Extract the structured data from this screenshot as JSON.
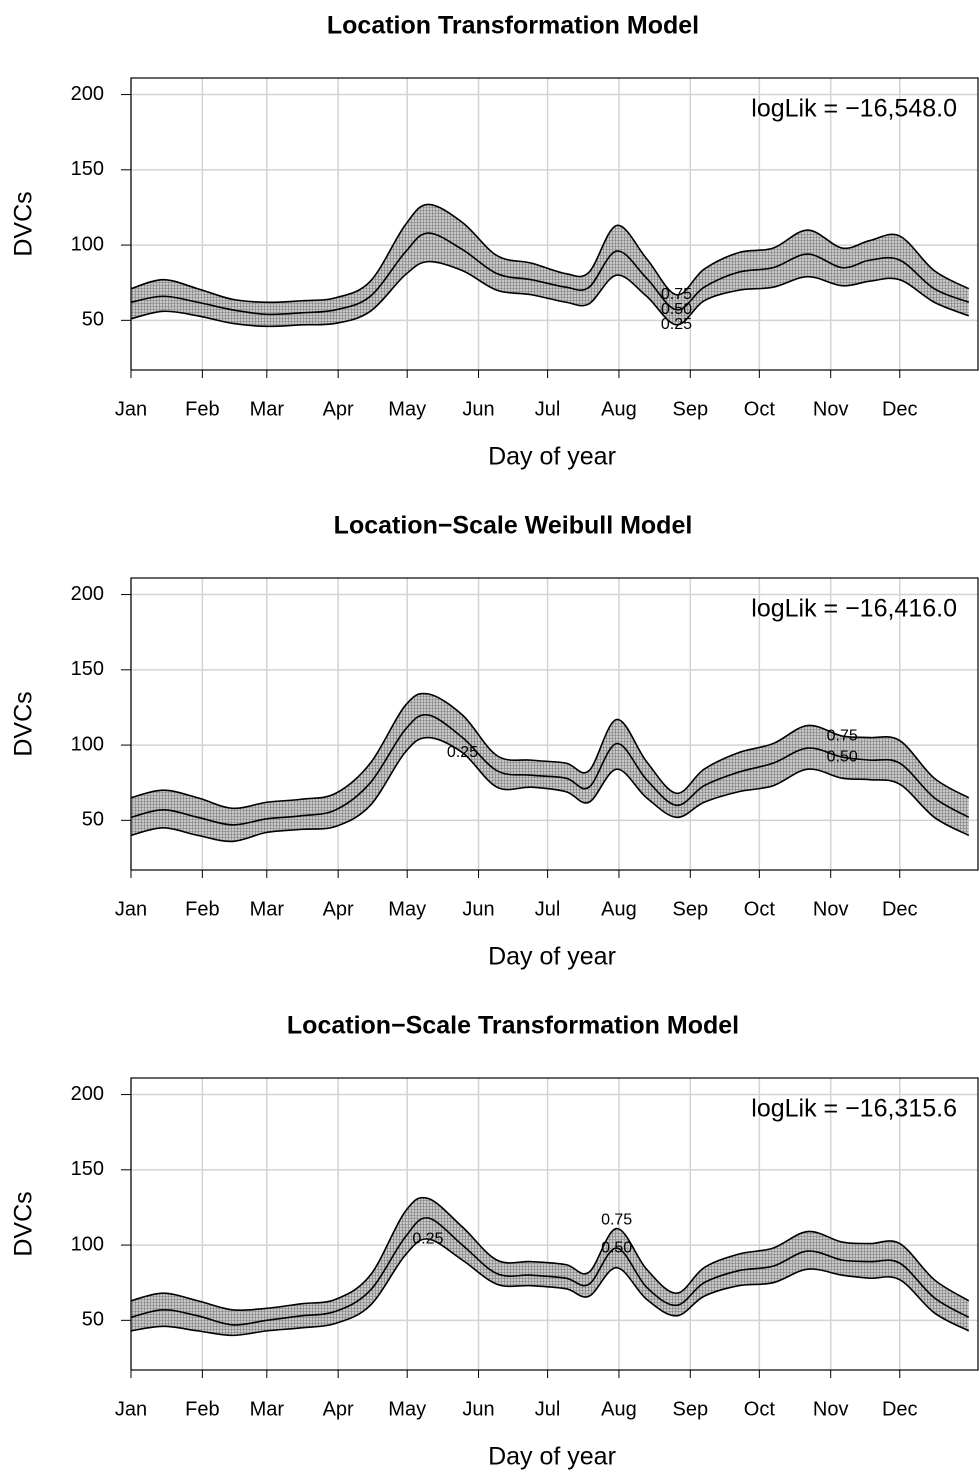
{
  "chart_data": [
    {
      "type": "line",
      "title": "Location Transformation Model",
      "x_label": "Day of year",
      "y_label": "DVCs",
      "annotation": "logLik =  −16,548.0",
      "x": [
        1,
        15,
        30,
        45,
        60,
        75,
        90,
        105,
        120,
        130,
        145,
        160,
        175,
        190,
        200,
        212,
        225,
        238,
        250,
        265,
        280,
        295,
        310,
        322,
        335,
        350,
        365
      ],
      "xlim": [
        1,
        369
      ],
      "ylim": [
        17,
        211
      ],
      "yticks": [
        50,
        100,
        150,
        200
      ],
      "xticks": [
        {
          "value": 1,
          "label": "Jan"
        },
        {
          "value": 32,
          "label": "Feb"
        },
        {
          "value": 60,
          "label": "Mar"
        },
        {
          "value": 91,
          "label": "Apr"
        },
        {
          "value": 121,
          "label": "May"
        },
        {
          "value": 152,
          "label": "Jun"
        },
        {
          "value": 182,
          "label": "Jul"
        },
        {
          "value": 213,
          "label": "Aug"
        },
        {
          "value": 244,
          "label": "Sep"
        },
        {
          "value": 274,
          "label": "Oct"
        },
        {
          "value": 305,
          "label": "Nov"
        },
        {
          "value": 335,
          "label": "Dec"
        }
      ],
      "grid": true,
      "series": [
        {
          "name": "0.25",
          "color": "#000000",
          "values": [
            51,
            56,
            53,
            48,
            46,
            47,
            48,
            56,
            80,
            89,
            83,
            70,
            67,
            62,
            61,
            80,
            66,
            47,
            63,
            70,
            72,
            79,
            73,
            76,
            77,
            62,
            53
          ]
        },
        {
          "name": "0.50",
          "color": "#000000",
          "values": [
            62,
            66,
            62,
            57,
            54,
            55,
            57,
            66,
            95,
            108,
            97,
            81,
            77,
            72,
            72,
            96,
            78,
            57,
            72,
            82,
            85,
            94,
            85,
            90,
            90,
            71,
            62
          ]
        },
        {
          "name": "0.75",
          "color": "#000000",
          "values": [
            71,
            77,
            71,
            64,
            62,
            63,
            65,
            76,
            113,
            127,
            115,
            93,
            88,
            81,
            82,
            113,
            91,
            67,
            84,
            95,
            98,
            110,
            98,
            103,
            106,
            83,
            71
          ]
        }
      ]
    },
    {
      "type": "line",
      "title": "Location−Scale Weibull Model",
      "x_label": "Day of year",
      "y_label": "DVCs",
      "annotation": "logLik =  −16,416.0",
      "x": [
        1,
        15,
        30,
        45,
        60,
        75,
        90,
        105,
        120,
        130,
        145,
        160,
        175,
        190,
        200,
        212,
        225,
        238,
        250,
        265,
        280,
        295,
        310,
        322,
        335,
        350,
        365
      ],
      "xlim": [
        1,
        369
      ],
      "ylim": [
        17,
        211
      ],
      "yticks": [
        50,
        100,
        150,
        200
      ],
      "xticks": [
        {
          "value": 1,
          "label": "Jan"
        },
        {
          "value": 32,
          "label": "Feb"
        },
        {
          "value": 60,
          "label": "Mar"
        },
        {
          "value": 91,
          "label": "Apr"
        },
        {
          "value": 121,
          "label": "May"
        },
        {
          "value": 152,
          "label": "Jun"
        },
        {
          "value": 182,
          "label": "Jul"
        },
        {
          "value": 213,
          "label": "Aug"
        },
        {
          "value": 244,
          "label": "Sep"
        },
        {
          "value": 274,
          "label": "Oct"
        },
        {
          "value": 305,
          "label": "Nov"
        },
        {
          "value": 335,
          "label": "Dec"
        }
      ],
      "grid": true,
      "series": [
        {
          "name": "0.25",
          "color": "#000000",
          "values": [
            40,
            45,
            40,
            36,
            42,
            44,
            46,
            60,
            95,
            105,
            95,
            72,
            72,
            69,
            62,
            84,
            65,
            52,
            62,
            69,
            73,
            84,
            78,
            77,
            74,
            52,
            40
          ]
        },
        {
          "name": "0.50",
          "color": "#000000",
          "values": [
            52,
            57,
            52,
            47,
            51,
            53,
            57,
            75,
            110,
            120,
            105,
            83,
            80,
            78,
            72,
            101,
            77,
            60,
            73,
            82,
            88,
            98,
            92,
            90,
            88,
            65,
            52
          ]
        },
        {
          "name": "0.75",
          "color": "#000000",
          "values": [
            65,
            70,
            65,
            58,
            62,
            64,
            68,
            88,
            126,
            134,
            120,
            93,
            90,
            88,
            83,
            117,
            89,
            68,
            84,
            95,
            101,
            113,
            106,
            105,
            103,
            78,
            65
          ]
        }
      ]
    },
    {
      "type": "line",
      "title": "Location−Scale Transformation Model",
      "x_label": "Day of year",
      "y_label": "DVCs",
      "annotation": "logLik =  −16,315.6",
      "x": [
        1,
        15,
        30,
        45,
        60,
        75,
        90,
        105,
        120,
        130,
        145,
        160,
        175,
        190,
        200,
        212,
        225,
        238,
        250,
        265,
        280,
        295,
        310,
        322,
        335,
        350,
        365
      ],
      "xlim": [
        1,
        369
      ],
      "ylim": [
        17,
        211
      ],
      "yticks": [
        50,
        100,
        150,
        200
      ],
      "xticks": [
        {
          "value": 1,
          "label": "Jan"
        },
        {
          "value": 32,
          "label": "Feb"
        },
        {
          "value": 60,
          "label": "Mar"
        },
        {
          "value": 91,
          "label": "Apr"
        },
        {
          "value": 121,
          "label": "May"
        },
        {
          "value": 152,
          "label": "Jun"
        },
        {
          "value": 182,
          "label": "Jul"
        },
        {
          "value": 213,
          "label": "Aug"
        },
        {
          "value": 244,
          "label": "Sep"
        },
        {
          "value": 274,
          "label": "Oct"
        },
        {
          "value": 305,
          "label": "Nov"
        },
        {
          "value": 335,
          "label": "Dec"
        }
      ],
      "grid": true,
      "series": [
        {
          "name": "0.25",
          "color": "#000000",
          "values": [
            43,
            46,
            43,
            40,
            43,
            45,
            48,
            60,
            93,
            104,
            90,
            74,
            73,
            71,
            66,
            85,
            64,
            53,
            66,
            73,
            75,
            84,
            80,
            78,
            77,
            55,
            43
          ]
        },
        {
          "name": "0.50",
          "color": "#000000",
          "values": [
            52,
            57,
            53,
            47,
            50,
            53,
            56,
            70,
            105,
            118,
            100,
            81,
            80,
            78,
            74,
            98,
            72,
            60,
            75,
            83,
            86,
            96,
            90,
            89,
            88,
            65,
            52
          ]
        },
        {
          "name": "0.75",
          "color": "#000000",
          "values": [
            63,
            68,
            63,
            57,
            58,
            61,
            64,
            80,
            122,
            131,
            112,
            90,
            89,
            87,
            82,
            111,
            84,
            68,
            85,
            94,
            98,
            109,
            102,
            101,
            101,
            77,
            63
          ]
        }
      ]
    }
  ]
}
